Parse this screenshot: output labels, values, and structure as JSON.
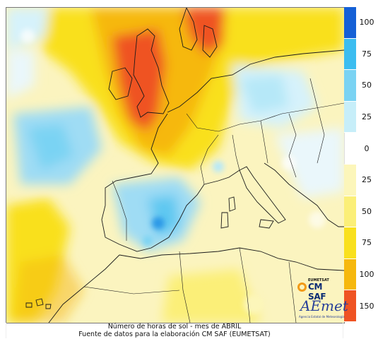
{
  "map": {
    "caption_line1": "Número de horas de sol - mes de ABRIL",
    "caption_line2": "Fuente de datos para la elaboración CM SAF (EUMETSAT)",
    "region": "Western Europe and North Africa",
    "projection": "lat-lon",
    "colors": {
      "land_outline": "#1a1a1a",
      "background": "#fbf4bf"
    }
  },
  "legend": {
    "items": [
      {
        "label": "100",
        "color": "#1560d6"
      },
      {
        "label": "75",
        "color": "#3bbdf0"
      },
      {
        "label": "50",
        "color": "#7ad3f3"
      },
      {
        "label": "25",
        "color": "#c7eef9"
      },
      {
        "label": "0",
        "color": "#ffffff"
      },
      {
        "label": "25",
        "color": "#fcf6ba"
      },
      {
        "label": "50",
        "color": "#fbef78"
      },
      {
        "label": "75",
        "color": "#f9e01d"
      },
      {
        "label": "100",
        "color": "#f6b80d"
      },
      {
        "label": "150",
        "color": "#ef5323"
      }
    ]
  },
  "logos": {
    "eumetsat_label": "EUMETSAT",
    "cmsaf_label": "CM SAF",
    "aemet_label": "AEmet",
    "aemet_tagline": "Agencia Estatal de Meteorología"
  }
}
